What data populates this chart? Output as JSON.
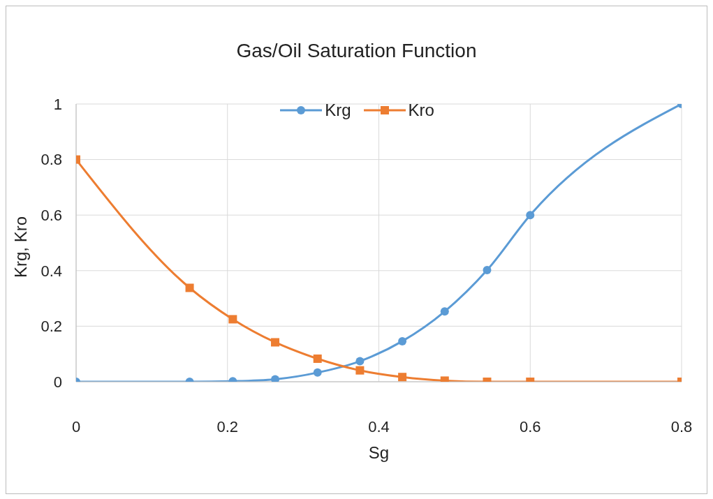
{
  "chart_data": {
    "type": "line",
    "title": "Gas/Oil Saturation Function",
    "xlabel": "Sg",
    "ylabel": "Krg, Kro",
    "x": [
      0,
      0.15,
      0.207,
      0.263,
      0.319,
      0.375,
      0.431,
      0.487,
      0.543,
      0.6,
      0.8
    ],
    "series": [
      {
        "name": "Krg",
        "color": "#5b9bd5",
        "marker": "circle",
        "values": [
          0,
          0,
          0.002,
          0.009,
          0.033,
          0.074,
          0.146,
          0.253,
          0.402,
          0.6,
          1
        ]
      },
      {
        "name": "Kro",
        "color": "#ed7d31",
        "marker": "square",
        "values": [
          0.8,
          0.338,
          0.225,
          0.142,
          0.083,
          0.041,
          0.017,
          0.004,
          0,
          0,
          0
        ]
      }
    ],
    "xlim": [
      0,
      0.8
    ],
    "xticks": [
      0,
      0.2,
      0.4,
      0.6,
      0.8
    ],
    "ylim": [
      0,
      1
    ],
    "yticks": [
      0,
      0.2,
      0.4,
      0.6,
      0.8,
      1
    ],
    "grid": true,
    "legend": "top",
    "line_style": "solid"
  }
}
